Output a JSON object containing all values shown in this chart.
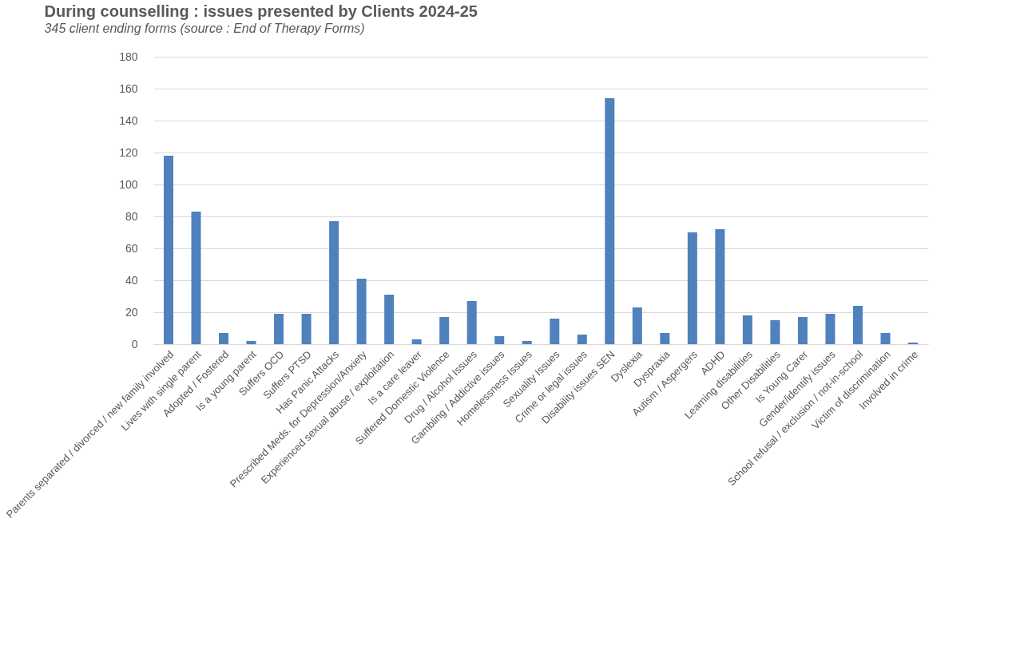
{
  "chart_data": {
    "type": "bar",
    "title": "During counselling : issues presented by Clients 2024-25",
    "subtitle": "345 client ending forms (source : End of Therapy Forms)",
    "categories": [
      "Parents separated / divorced / new family involved",
      "Lives with single parent",
      "Adopted / Fostered",
      "Is a young parent",
      "Suffers OCD",
      "Suffers PTSD",
      "Has Panic Attacks",
      "Prescribed Meds. for Depression/Anxiety",
      "Experienced sexual abuse / exploitation",
      "Is a care leaver",
      "Suffered Domestic Violence",
      "Drug / Alcohol Issues",
      "Gambling / Addictive issues",
      "Homelessness Issues",
      "Sexuality Issues",
      "Crime or legal issues",
      "Disability issues SEN",
      "Dyslexia",
      "Dyspraxia",
      "Autism / Aspergers",
      "ADHD",
      "Learning disabilities",
      "Other Disabilities",
      "Is Young Carer",
      "Gender/identify issues",
      "School refusal / exclusion / not-in-school",
      "Victim of discrimination",
      "Involved in crime"
    ],
    "values": [
      118,
      83,
      7,
      2,
      19,
      19,
      77,
      41,
      31,
      3,
      17,
      27,
      5,
      2,
      16,
      6,
      154,
      23,
      7,
      70,
      72,
      18,
      15,
      17,
      19,
      24,
      7,
      1
    ],
    "color": "#4f81bd",
    "ylim": [
      0,
      180
    ],
    "yticks": [
      0,
      20,
      40,
      60,
      80,
      100,
      120,
      140,
      160,
      180
    ],
    "grid": "y"
  }
}
